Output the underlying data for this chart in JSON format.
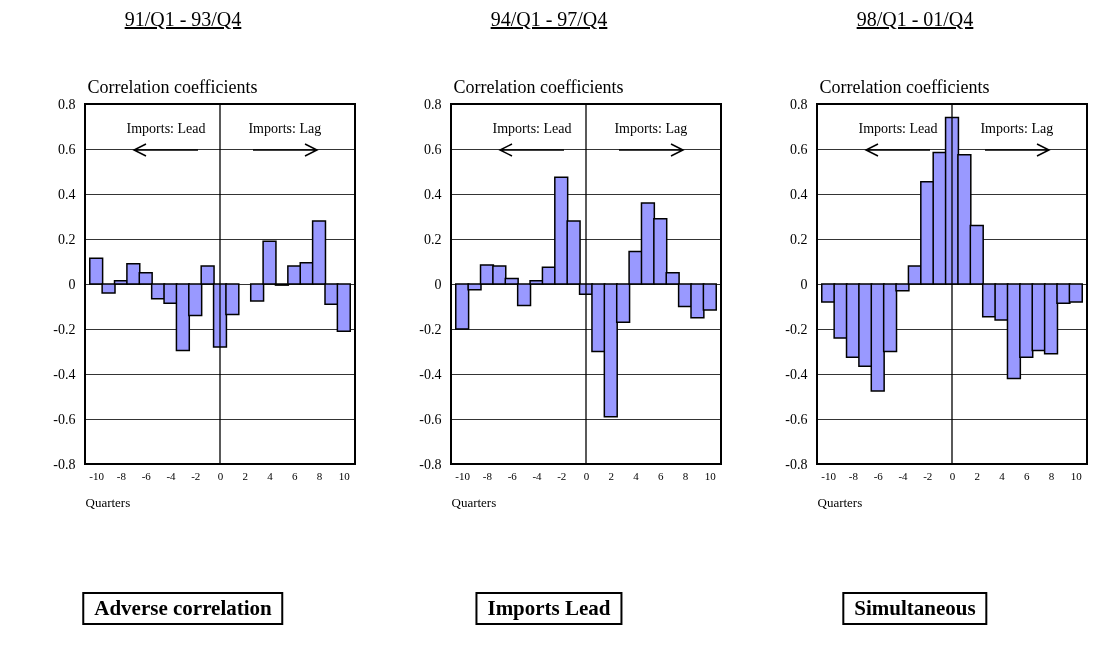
{
  "chart_data": [
    {
      "type": "bar",
      "title": "91/Q1 - 93/Q4",
      "ylabel": "Correlation coefficients",
      "xlabel": "Quarters",
      "color": "#9999ff",
      "grid": "y",
      "xlim": [
        -10.5,
        10.5
      ],
      "xticks": [
        -10,
        -8,
        -6,
        -4,
        -2,
        0,
        2,
        4,
        6,
        8,
        10
      ],
      "ylim": [
        -0.8,
        0.8
      ],
      "yticks": [
        -0.8,
        -0.6,
        -0.4,
        -0.2,
        0,
        0.2,
        0.4,
        0.6,
        0.8
      ],
      "x": [
        -10,
        -9,
        -8,
        -7,
        -6,
        -5,
        -4,
        -3,
        -2,
        -1,
        0,
        1,
        2,
        3,
        4,
        5,
        6,
        7,
        8,
        9,
        10
      ],
      "values": [
        0.115,
        -0.04,
        0.015,
        0.09,
        0.05,
        -0.065,
        -0.085,
        -0.295,
        -0.14,
        0.08,
        -0.28,
        -0.135,
        null,
        -0.075,
        0.19,
        -0.005,
        0.08,
        0.095,
        0.28,
        -0.09,
        -0.21
      ],
      "ref_lines": [
        {
          "axis": "x",
          "value": 0,
          "color": "#000000"
        }
      ],
      "annotations": [
        "Imports: Lead",
        "Imports: Lag",
        "Adverse correlation"
      ]
    },
    {
      "type": "bar",
      "title": "94/Q1 - 97/Q4",
      "ylabel": "Correlation coefficients",
      "xlabel": "Quarters",
      "color": "#9999ff",
      "grid": "y",
      "xlim": [
        -10.5,
        10.5
      ],
      "xticks": [
        -10,
        -8,
        -6,
        -4,
        -2,
        0,
        2,
        4,
        6,
        8,
        10
      ],
      "ylim": [
        -0.8,
        0.8
      ],
      "yticks": [
        -0.8,
        -0.6,
        -0.4,
        -0.2,
        0,
        0.2,
        0.4,
        0.6,
        0.8
      ],
      "x": [
        -10,
        -9,
        -8,
        -7,
        -6,
        -5,
        -4,
        -3,
        -2,
        -1,
        0,
        1,
        2,
        3,
        4,
        5,
        6,
        7,
        8,
        9,
        10
      ],
      "values": [
        -0.2,
        -0.025,
        0.085,
        0.08,
        0.025,
        -0.095,
        0.015,
        0.075,
        0.475,
        0.28,
        -0.045,
        -0.3,
        -0.59,
        -0.17,
        0.145,
        0.36,
        0.29,
        0.05,
        -0.1,
        -0.15,
        -0.115
      ],
      "ref_lines": [
        {
          "axis": "x",
          "value": 0,
          "color": "#000000"
        }
      ],
      "annotations": [
        "Imports: Lead",
        "Imports: Lag",
        "Imports Lead"
      ]
    },
    {
      "type": "bar",
      "title": "98/Q1 - 01/Q4",
      "ylabel": "Correlation coefficients",
      "xlabel": "Quarters",
      "color": "#9999ff",
      "grid": "y",
      "xlim": [
        -10.5,
        10.5
      ],
      "xticks": [
        -10,
        -8,
        -6,
        -4,
        -2,
        0,
        2,
        4,
        6,
        8,
        10
      ],
      "ylim": [
        -0.8,
        0.8
      ],
      "yticks": [
        -0.8,
        -0.6,
        -0.4,
        -0.2,
        0,
        0.2,
        0.4,
        0.6,
        0.8
      ],
      "x": [
        -10,
        -9,
        -8,
        -7,
        -6,
        -5,
        -4,
        -3,
        -2,
        -1,
        0,
        1,
        2,
        3,
        4,
        5,
        6,
        7,
        8,
        9,
        10
      ],
      "values": [
        -0.08,
        -0.24,
        -0.325,
        -0.365,
        -0.475,
        -0.3,
        -0.03,
        0.08,
        0.455,
        0.585,
        0.74,
        0.575,
        0.26,
        -0.145,
        -0.16,
        -0.42,
        -0.325,
        -0.295,
        -0.31,
        -0.085,
        -0.08
      ],
      "ref_lines": [
        {
          "axis": "x",
          "value": 0,
          "color": "#000000"
        }
      ],
      "annotations": [
        "Imports: Lead",
        "Imports: Lag",
        "Simultaneous"
      ]
    }
  ]
}
